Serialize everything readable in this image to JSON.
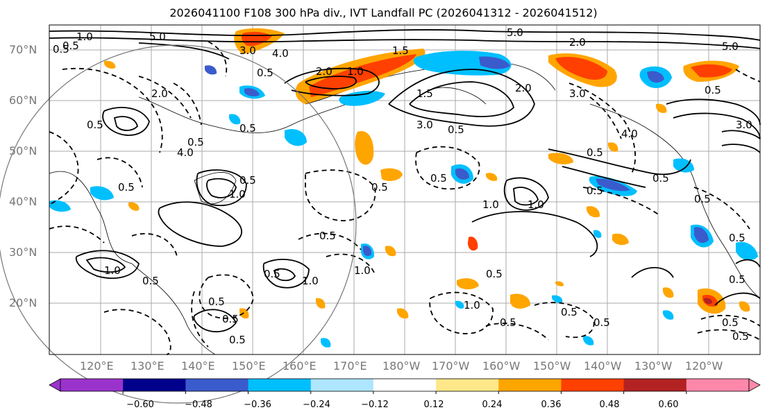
{
  "title": "2026041100 F108 300 hPa div., IVT Landfall PC (2026041312 - 2026041512)",
  "lat_labels": [
    "70°N",
    "60°N",
    "50°N",
    "40°N",
    "30°N",
    "20°N"
  ],
  "lon_labels": [
    "120°E",
    "130°E",
    "140°E",
    "150°E",
    "160°E",
    "170°E",
    "180°W",
    "170°W",
    "160°W",
    "150°W",
    "140°W",
    "130°W",
    "120°W"
  ],
  "colorbar": {
    "ticks": [
      "−0.60",
      "−0.48",
      "−0.36",
      "−0.24",
      "−0.12",
      "0.12",
      "0.24",
      "0.36",
      "0.48",
      "0.60"
    ],
    "colors": [
      "#9a33cc",
      "#00008b",
      "#3a5bcc",
      "#00bfff",
      "#aee6ff",
      "#ffffff",
      "#ffe88a",
      "#ffa500",
      "#ff4000",
      "#b22222",
      "#ff88aa"
    ]
  },
  "contour_labels": [
    "0.5",
    "1.0",
    "1.5",
    "2.0",
    "3.0",
    "4.0",
    "5.0"
  ]
}
